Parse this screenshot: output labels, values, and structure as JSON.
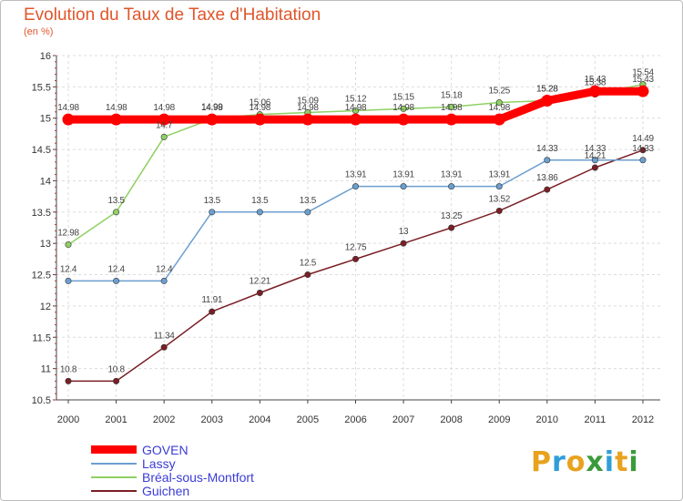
{
  "header": {
    "title": "Evolution du Taux de Taxe d'Habitation",
    "unit": "(en %)"
  },
  "brand": {
    "text": "Proxiti",
    "colors": [
      "#e8a21e",
      "#2f9ed8",
      "#e8a21e",
      "#3b9b3b",
      "#2f9ed8",
      "#e8a21e",
      "#3b9b3b"
    ]
  },
  "chart_data": {
    "type": "line",
    "title": "Evolution du Taux de Taxe d'Habitation",
    "ylabel": "(en %)",
    "xlabel": "",
    "x": [
      "2000",
      "2001",
      "2002",
      "2003",
      "2004",
      "2005",
      "2006",
      "2007",
      "2008",
      "2009",
      "2010",
      "2011",
      "2012"
    ],
    "ylim": [
      10.5,
      16
    ],
    "yticks": [
      "10.5",
      "11",
      "11.5",
      "12",
      "12.5",
      "13",
      "13.5",
      "14",
      "14.5",
      "15",
      "15.5",
      "16"
    ],
    "grid": true,
    "legend_position": "bottom-left",
    "series": [
      {
        "name": "GOVEN",
        "color": "#ff0000",
        "values": [
          14.98,
          14.98,
          14.98,
          14.98,
          14.98,
          14.98,
          14.98,
          14.98,
          14.98,
          14.98,
          15.28,
          15.43,
          15.43
        ],
        "labels": [
          "14.98",
          "14.98",
          "14.98",
          "14.98",
          "14.98",
          "14.98",
          "14.98",
          "14.98",
          "14.98",
          "14.98",
          "15.28",
          "15.43",
          "15.43"
        ]
      },
      {
        "name": "Lassy",
        "color": "#6c9fd0",
        "values": [
          12.4,
          12.4,
          12.4,
          13.5,
          13.5,
          13.5,
          13.91,
          13.91,
          13.91,
          13.91,
          14.33,
          14.33,
          14.33
        ],
        "labels": [
          "12.4",
          "12.4",
          "12.4",
          "13.5",
          "13.5",
          "13.5",
          "13.91",
          "13.91",
          "13.91",
          "13.91",
          "14.33",
          "14.33",
          "14.33"
        ]
      },
      {
        "name": "Bréal-sous-Montfort",
        "color": "#8fd162",
        "values": [
          12.98,
          13.5,
          14.7,
          14.99,
          15.06,
          15.09,
          15.12,
          15.15,
          15.18,
          15.25,
          15.28,
          15.38,
          15.54
        ],
        "labels": [
          "12.98",
          "13.5",
          "14.7",
          "14.99",
          "15.06",
          "15.09",
          "15.12",
          "15.15",
          "15.18",
          "15.25",
          "15.28",
          "15.38",
          "15.54"
        ]
      },
      {
        "name": "Guichen",
        "color": "#7a1f25",
        "values": [
          10.8,
          10.8,
          11.34,
          11.91,
          12.21,
          12.5,
          12.75,
          13.0,
          13.25,
          13.52,
          13.86,
          14.21,
          14.49
        ],
        "labels": [
          "10.8",
          "10.8",
          "11.34",
          "11.91",
          "12.21",
          "12.5",
          "12.75",
          "13",
          "13.25",
          "13.52",
          "13.86",
          "14.21",
          "14.49"
        ]
      }
    ]
  }
}
